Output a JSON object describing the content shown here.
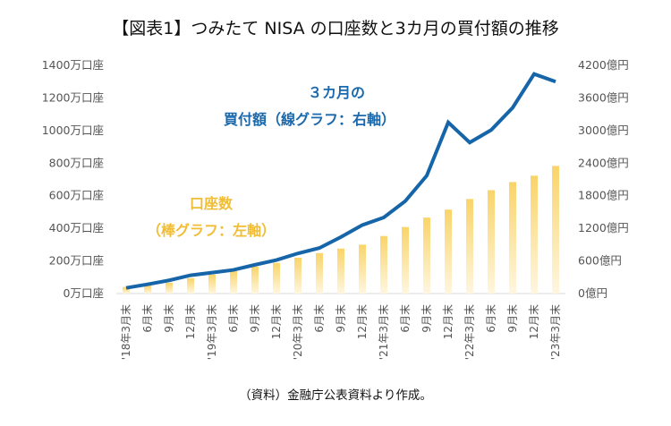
{
  "chart_data": {
    "type": "bar+line",
    "title": "【図表1】つみたて NISA の口座数と3カ月の買付額の推移",
    "categories": [
      "'18年3月末",
      "6月末",
      "9月末",
      "12月末",
      "'19年3月末",
      "6月末",
      "9月末",
      "12月末",
      "'20年3月末",
      "6月末",
      "9月末",
      "12月末",
      "'21年3月末",
      "6月末",
      "9月末",
      "12月末",
      "'22年3月末",
      "6月末",
      "9月末",
      "12月末",
      "'23年3月末"
    ],
    "x_tick_labels": [
      {
        "month": "3月末",
        "year": "'18年"
      },
      {
        "month": "6月末",
        "year": ""
      },
      {
        "month": "9月末",
        "year": ""
      },
      {
        "month": "12月末",
        "year": ""
      },
      {
        "month": "3月末",
        "year": "'19年"
      },
      {
        "month": "6月末",
        "year": ""
      },
      {
        "month": "9月末",
        "year": ""
      },
      {
        "month": "12月末",
        "year": ""
      },
      {
        "month": "3月末",
        "year": "'20年"
      },
      {
        "month": "6月末",
        "year": ""
      },
      {
        "month": "9月末",
        "year": ""
      },
      {
        "month": "12月末",
        "year": ""
      },
      {
        "month": "3月末",
        "year": "'21年"
      },
      {
        "month": "6月末",
        "year": ""
      },
      {
        "month": "9月末",
        "year": ""
      },
      {
        "month": "12月末",
        "year": ""
      },
      {
        "month": "3月末",
        "year": "'22年"
      },
      {
        "month": "6月末",
        "year": ""
      },
      {
        "month": "9月末",
        "year": ""
      },
      {
        "month": "12月末",
        "year": ""
      },
      {
        "month": "3月末",
        "year": "'23年"
      }
    ],
    "series": [
      {
        "name": "口座数",
        "type": "bar",
        "axis": "left",
        "unit": "万口座",
        "color_top": "#f9d46a",
        "color_bottom": "#fff6e0",
        "values": [
          40,
          50,
          66,
          94,
          116,
          138,
          165,
          188,
          220,
          248,
          276,
          300,
          353,
          408,
          466,
          515,
          580,
          634,
          684,
          723,
          783
        ]
      },
      {
        "name": "3カ月の買付額",
        "type": "line",
        "axis": "right",
        "unit": "億円",
        "color": "#1565a8",
        "values": [
          104,
          170,
          243,
          336,
          385,
          435,
          529,
          617,
          739,
          838,
          1040,
          1261,
          1400,
          1702,
          2170,
          3150,
          2780,
          3010,
          3420,
          4040,
          3900
        ]
      }
    ],
    "left_axis": {
      "ylim": [
        0,
        1400
      ],
      "ticks": [
        0,
        200,
        400,
        600,
        800,
        1000,
        1200,
        1400
      ],
      "tick_labels": [
        "0万口座",
        "200万口座",
        "400万口座",
        "600万口座",
        "800万口座",
        "1000万口座",
        "1200万口座",
        "1400万口座"
      ]
    },
    "right_axis": {
      "ylim": [
        0,
        4200
      ],
      "ticks": [
        0,
        600,
        1200,
        1800,
        2400,
        3000,
        3600,
        4200
      ],
      "tick_labels": [
        "0億円",
        "600億円",
        "1200億円",
        "1800億円",
        "2400億円",
        "3000億円",
        "3600億円",
        "4200億円"
      ]
    },
    "grid": false,
    "annotations": {
      "line_label_1": "３カ月の",
      "line_label_2": "買付額（線グラフ：右軸）",
      "bar_label_1": "口座数",
      "bar_label_2": "（棒グラフ：左軸）"
    },
    "source": "（資料）金融庁公表資料より作成。"
  }
}
